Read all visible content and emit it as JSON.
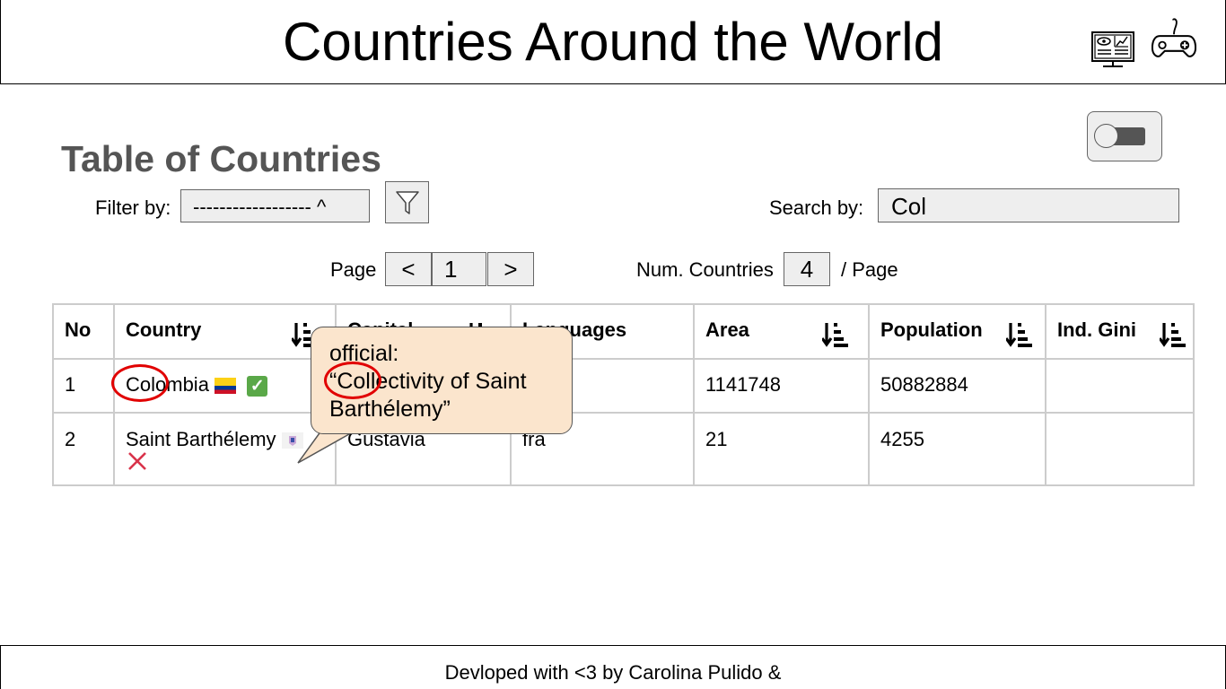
{
  "header": {
    "title": "Countries Around the World",
    "icons": [
      "monitor-dashboard-icon",
      "gamepad-icon"
    ]
  },
  "toggle": {
    "state": "off"
  },
  "main": {
    "title": "Table of Countries",
    "filter_label": "Filter by:",
    "filter_value": "------------------ ^",
    "search_label": "Search by:",
    "search_value": "Col",
    "page_label": "Page",
    "prev_label": "<",
    "page_number": "1",
    "next_label": ">",
    "num_countries_label": "Num. Countries",
    "num_countries_value": "4",
    "per_page_label": "/ Page"
  },
  "table": {
    "headers": [
      "No",
      "Country",
      "Capital",
      "Languages",
      "Area",
      "Population",
      "Ind. Gini"
    ],
    "rows": [
      {
        "no": "1",
        "country": "Colombia",
        "capital": "",
        "languages": "",
        "area": "1141748",
        "population": "50882884",
        "gini": "",
        "independent": true
      },
      {
        "no": "2",
        "country": "Saint Barthélemy",
        "capital": "Gustavia",
        "languages": "fra",
        "area": "21",
        "population": "4255",
        "gini": "",
        "independent": false
      }
    ]
  },
  "tooltip": {
    "line1": "official:",
    "line2": "“Collectivity of Saint",
    "line3": "Barthélemy”"
  },
  "colors": {
    "highlight_circle": "#e10000",
    "tooltip_bg": "#fbe5cd",
    "check_green": "#5aa848",
    "cross_red": "#d9334a"
  },
  "footer": {
    "text": "Devloped with <3 by Carolina Pulido &"
  }
}
